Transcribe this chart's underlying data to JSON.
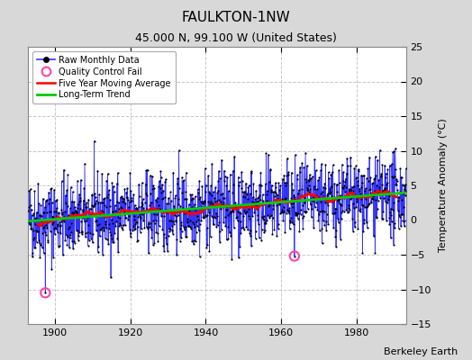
{
  "title": "FAULKTON-1NW",
  "subtitle": "45.000 N, 99.100 W (United States)",
  "ylabel": "Temperature Anomaly (°C)",
  "watermark": "Berkeley Earth",
  "year_start": 1893,
  "year_end": 1993,
  "ylim": [
    -15,
    25
  ],
  "yticks": [
    -15,
    -10,
    -5,
    0,
    5,
    10,
    15,
    20,
    25
  ],
  "xticks": [
    1900,
    1920,
    1940,
    1960,
    1980
  ],
  "bg_color": "#d8d8d8",
  "plot_bg_color": "#ffffff",
  "grid_color": "#c8c8c8",
  "raw_line_color": "#3333ff",
  "raw_dot_color": "#000000",
  "qc_fail_color": "#ff44aa",
  "moving_avg_color": "#ff0000",
  "trend_color": "#00cc00",
  "noise_std": 2.8,
  "trend_slope": 0.003,
  "moving_avg_window": 60,
  "seed": 42,
  "qc_year_1": 1897.5,
  "qc_val_1": -10.5,
  "qc_year_2": 1963.5,
  "qc_val_2": -5.2,
  "title_fontsize": 11,
  "subtitle_fontsize": 9,
  "tick_fontsize": 8,
  "ylabel_fontsize": 8
}
